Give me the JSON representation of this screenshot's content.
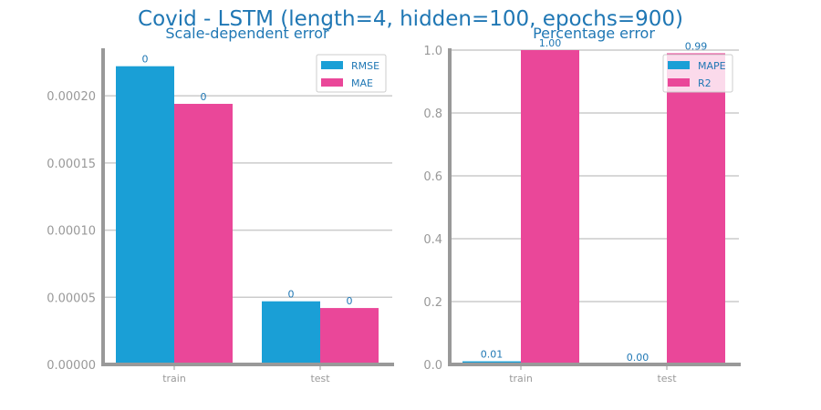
{
  "chart_data": [
    {
      "type": "bar",
      "title": "Scale-dependent error",
      "categories": [
        "train",
        "test"
      ],
      "series": [
        {
          "name": "RMSE",
          "values": [
            0.000222,
            4.7e-05
          ],
          "labels": [
            "0",
            "0"
          ]
        },
        {
          "name": "MAE",
          "values": [
            0.000194,
            4.2e-05
          ],
          "labels": [
            "0",
            "0"
          ]
        }
      ],
      "yticks": [
        "0.00000",
        "0.00005",
        "0.00010",
        "0.00015",
        "0.00020"
      ],
      "ytick_values": [
        0,
        5e-05,
        0.0001,
        0.00015,
        0.0002
      ],
      "ylim": [
        0,
        0.000234
      ],
      "grid": true,
      "legend": "top-right"
    },
    {
      "type": "bar",
      "title": "Percentage error",
      "categories": [
        "train",
        "test"
      ],
      "series": [
        {
          "name": "MAPE",
          "values": [
            0.01,
            0.0
          ],
          "labels": [
            "0.01",
            "0.00"
          ]
        },
        {
          "name": "R2",
          "values": [
            1.0,
            0.99
          ],
          "labels": [
            "1.00",
            "0.99"
          ]
        }
      ],
      "yticks": [
        "0.0",
        "0.2",
        "0.4",
        "0.6",
        "0.8",
        "1.0"
      ],
      "ytick_values": [
        0,
        0.2,
        0.4,
        0.6,
        0.8,
        1.0
      ],
      "ylim": [
        0,
        1.0
      ],
      "grid": true,
      "legend": "top-right"
    }
  ],
  "suptitle": "Covid - LSTM (length=4, hidden=100, epochs=900)",
  "colors": {
    "series1": "#1a9fd6",
    "series2": "#ea4799",
    "axis": "#999999",
    "grid": "#cccccc",
    "text": "#1f77b4"
  }
}
